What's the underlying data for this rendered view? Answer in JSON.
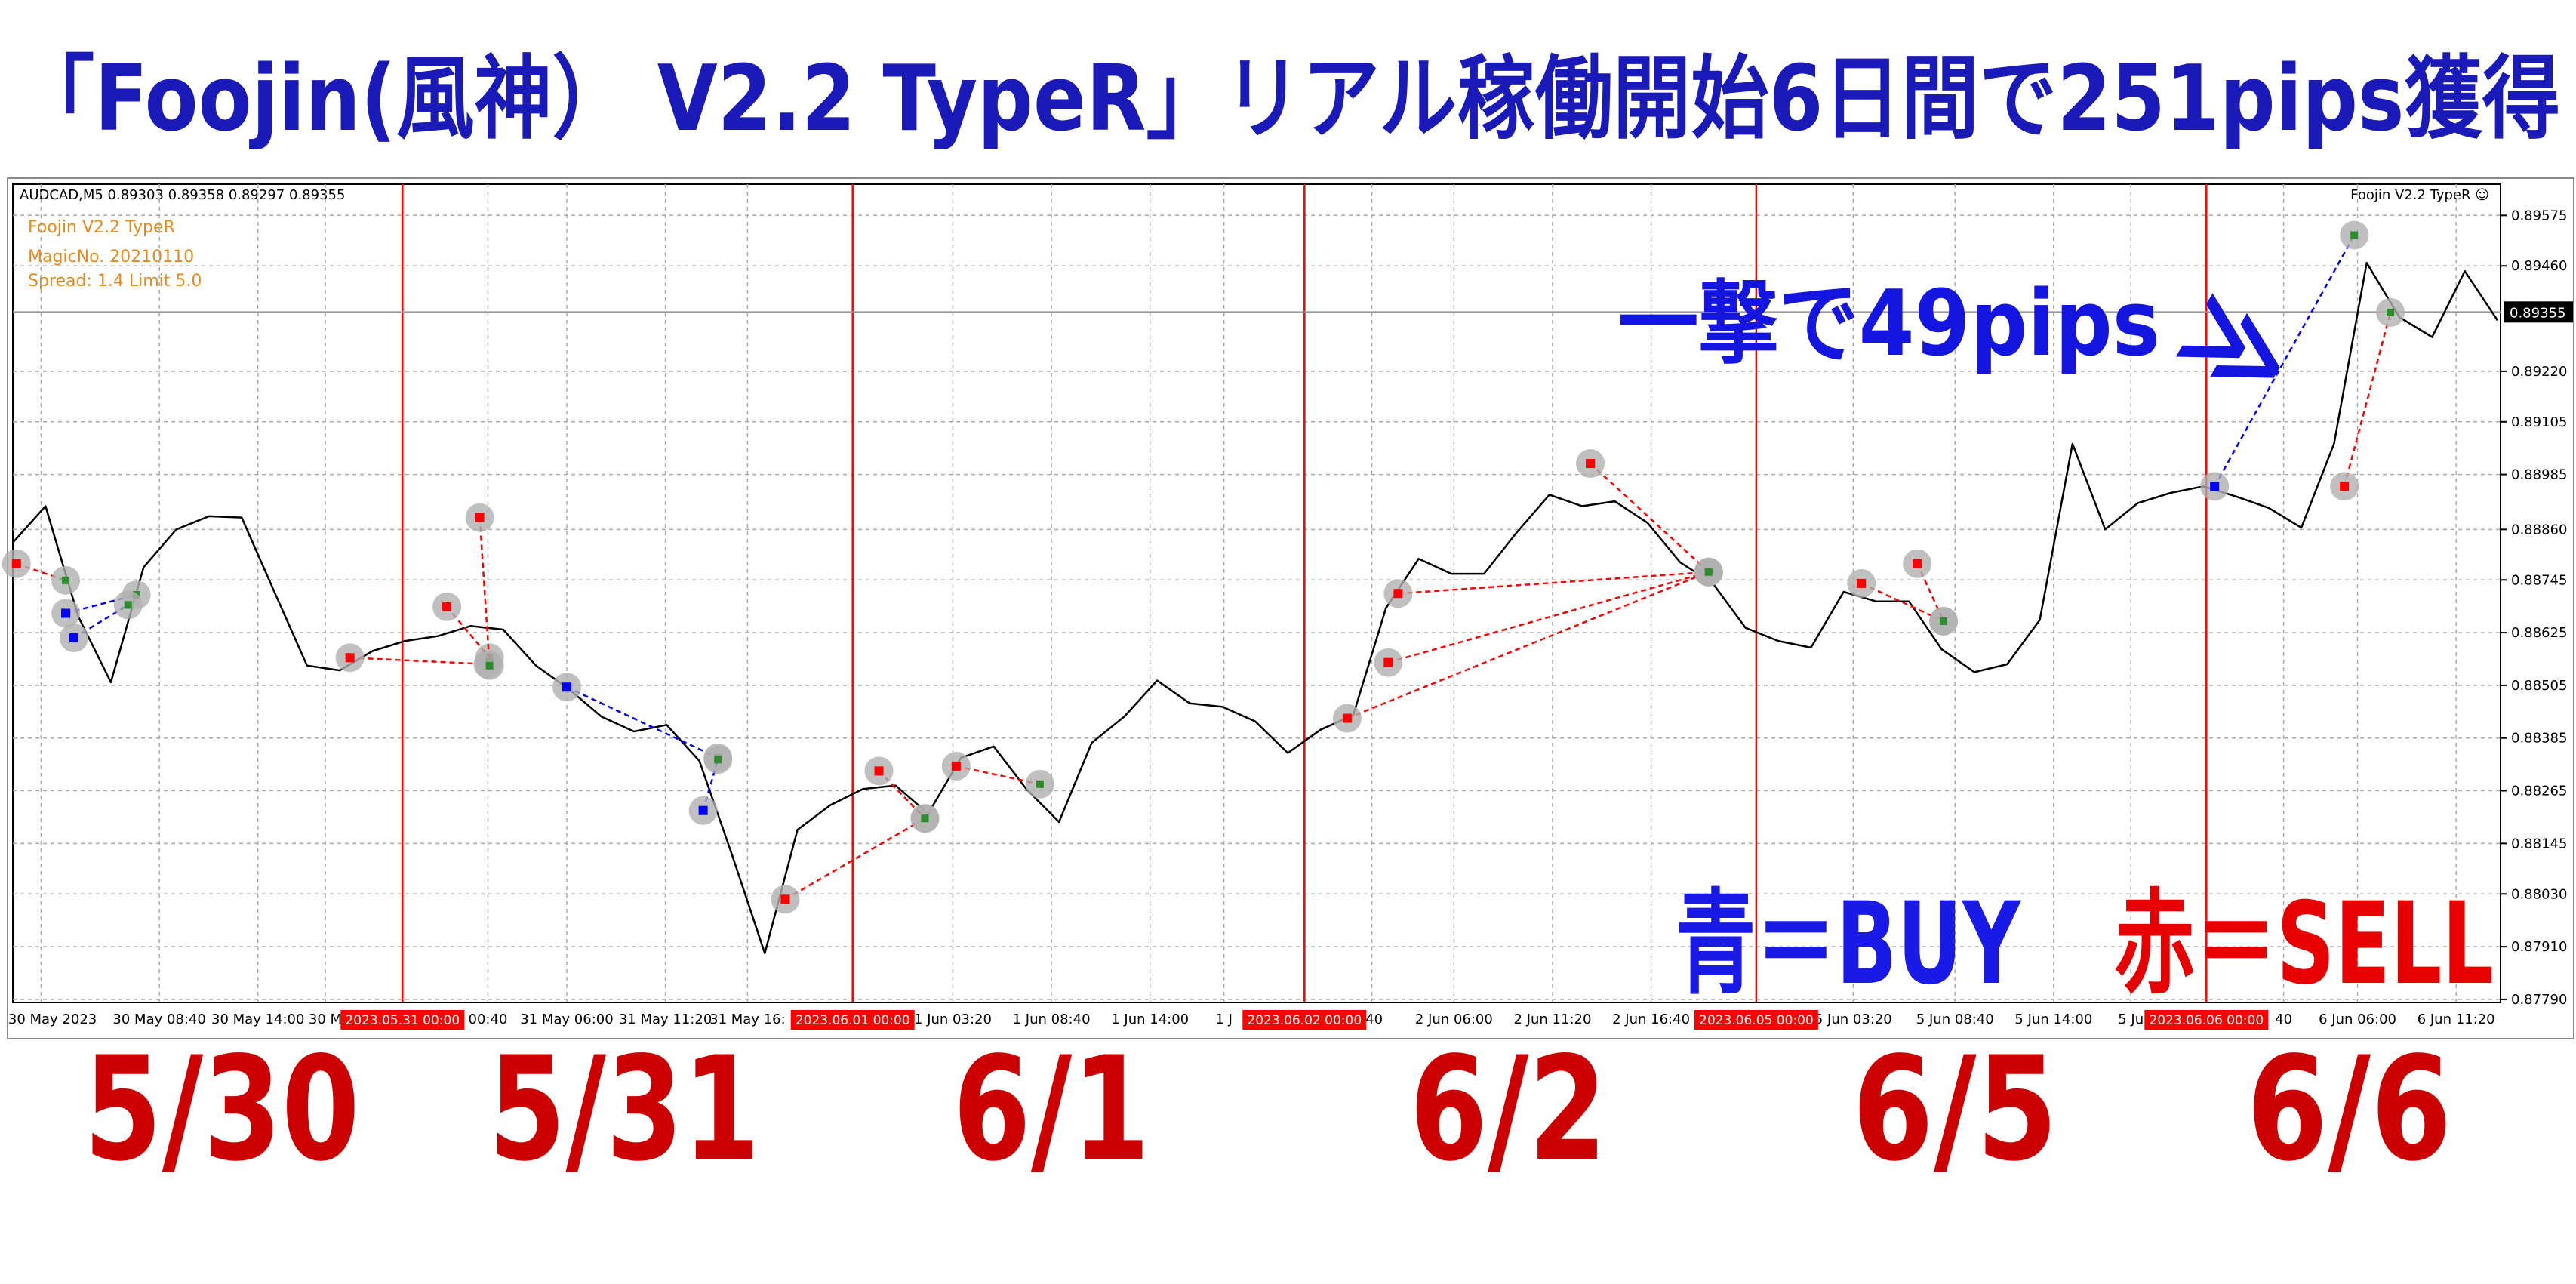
{
  "title": "「Foojin(風神） V2.2 TypeR」リアル稼働開始6日間で251pips獲得",
  "chart_data": {
    "type": "line",
    "symbol_info": "AUDCAD,M5 0.89303 0.89358 0.89297 0.89355",
    "ea_name": "Foojin V2.2 TypeR",
    "magic": "MagicNo. 20210110",
    "spread": "Spread: 1.4  Limit  5.0",
    "ea_label": "Foojin V2.2 TypeR ☺",
    "color": "#000000",
    "values": [
      0.8883,
      0.88913,
      0.88662,
      0.88512,
      0.88774,
      0.8886,
      0.8889,
      0.88887,
      0.88718,
      0.8855,
      0.88539,
      0.88583,
      0.88606,
      0.88617,
      0.8864,
      0.88632,
      0.8855,
      0.88497,
      0.88434,
      0.884,
      0.88415,
      0.88333,
      0.88119,
      0.87895,
      0.88176,
      0.88232,
      0.88269,
      0.88277,
      0.88213,
      0.8834,
      0.88366,
      0.88269,
      0.88194,
      0.88374,
      0.88434,
      0.88516,
      0.88464,
      0.88456,
      0.88423,
      0.88351,
      0.88404,
      0.88437,
      0.88681,
      0.88793,
      0.88759,
      0.88759,
      0.88853,
      0.88939,
      0.88913,
      0.88924,
      0.88875,
      0.88785,
      0.88737,
      0.88636,
      0.88606,
      0.88591,
      0.88718,
      0.88696,
      0.88696,
      0.88587,
      0.88535,
      0.88553,
      0.88654,
      0.89055,
      0.8886,
      0.8892,
      0.88943,
      0.88958,
      0.88935,
      0.88909,
      0.88864,
      0.89055,
      0.89467,
      0.89343,
      0.89298,
      0.89448,
      0.89336
    ],
    "ylim": [
      0.87783,
      0.89646
    ],
    "yticks": [
      0.89575,
      {
        "value": 0.8946,
        "label": "0.89460"
      },
      {
        "value": 0.8922,
        "label": "0.89220"
      },
      0.89105,
      0.88985,
      {
        "value": 0.8886,
        "label": "0.88860"
      },
      0.88745,
      0.88625,
      0.88505,
      0.88385,
      0.88265,
      0.88145,
      {
        "value": 0.8803,
        "label": "0.88030"
      },
      {
        "value": 0.8791,
        "label": "0.87910"
      },
      {
        "value": 0.8779,
        "label": "0.87790"
      }
    ],
    "current_price": 0.89355,
    "grid": true,
    "x_tick_labels": [
      "30 May 2023",
      "30 May 08:40",
      "30 May 14:00",
      "30 M",
      "00:40",
      "31 May 06:00",
      "31 May 11:20",
      "31 May 16:",
      "1 Jun 03:20",
      "1 Jun 08:40",
      "1 Jun 14:00",
      "1 J",
      ":40",
      "2 Jun 06:00",
      "2 Jun 11:20",
      "2 Jun 16:40",
      "5 Jun 03:20",
      "5 Jun 08:40",
      "5 Jun 14:00",
      "5 Ju",
      "40",
      "6 Jun 06:00",
      "6 Jun 11:20"
    ],
    "day_separators": [
      "2023.05.31 00:00",
      "2023.06.01 00:00",
      "2023.06.02 00:00",
      "2023.06.05 00:00",
      "2023.06.06 00:00"
    ],
    "separator_color": "#ff0000",
    "trades": [
      {
        "open": 0.88782,
        "close": 0.88744,
        "color": "#ff0000"
      },
      {
        "open": 0.88669,
        "close": 0.88711,
        "color": "#0000ff"
      },
      {
        "open": 0.88613,
        "close": 0.88688,
        "color": "#0000ff"
      },
      {
        "open": 0.88568,
        "close": 0.88553,
        "color": "#ff0000"
      },
      {
        "open": 0.88684,
        "close": 0.88568,
        "color": "#ff0000"
      },
      {
        "open": 0.88887,
        "close": 0.8855,
        "color": "#ff0000"
      },
      {
        "open": 0.88501,
        "close": 0.8834,
        "color": "#0000ff"
      },
      {
        "open": 0.8822,
        "close": 0.88336,
        "color": "#0000ff"
      },
      {
        "open": 0.88018,
        "close": 0.88202,
        "color": "#ff0000"
      },
      {
        "open": 0.8831,
        "close": 0.88202,
        "color": "#ff0000"
      },
      {
        "open": 0.88321,
        "close": 0.8828,
        "color": "#ff0000"
      },
      {
        "open": 0.8843,
        "close": 0.88763,
        "color": "#ff0000"
      },
      {
        "open": 0.88557,
        "close": 0.88763,
        "color": "#ff0000"
      },
      {
        "open": 0.88714,
        "close": 0.88763,
        "color": "#ff0000"
      },
      {
        "open": 0.8901,
        "close": 0.88763,
        "color": "#ff0000"
      },
      {
        "open": 0.88737,
        "close": 0.88651,
        "color": "#ff0000"
      },
      {
        "open": 0.88782,
        "close": 0.88651,
        "color": "#ff0000"
      },
      {
        "open": 0.88958,
        "close": 0.8953,
        "color": "#0000ff"
      },
      {
        "open": 0.88958,
        "close": 0.89354,
        "color": "#ff0000"
      }
    ]
  },
  "annotation": "一撃で49pips",
  "arrow": "≫",
  "legend": [
    {
      "text": "青＝BUY",
      "color": "#1a1ae6"
    },
    {
      "text": "赤＝SELL",
      "color": "#e60000"
    }
  ],
  "day_labels": [
    "5/30",
    "5/31",
    "6/1",
    "6/2",
    "6/5",
    "6/6"
  ],
  "day_label_color": "#cc0000",
  "title_color": "#1a1ab8"
}
